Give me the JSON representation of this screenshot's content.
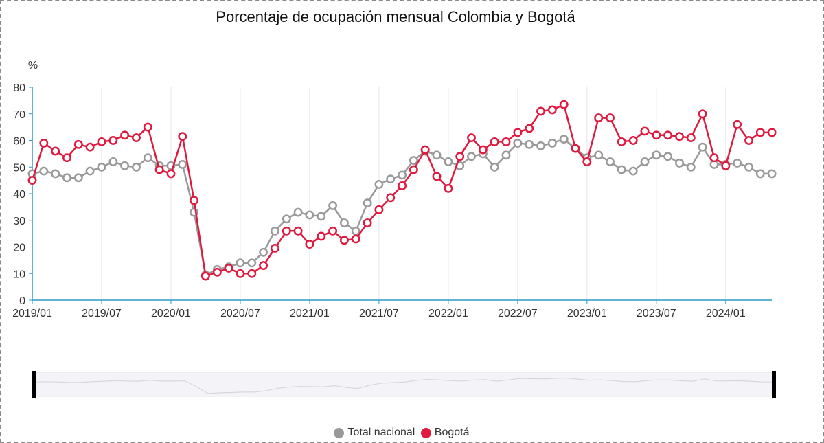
{
  "chart_data": {
    "type": "line",
    "title": "Porcentaje de ocupación mensual Colombia y Bogotá",
    "ylabel": "%",
    "xlabel": "",
    "ylim": [
      0,
      80
    ],
    "yticks": [
      0,
      10,
      20,
      30,
      40,
      50,
      60,
      70,
      80
    ],
    "x_tick_labels": [
      "2019/01",
      "2019/07",
      "2020/01",
      "2020/07",
      "2021/01",
      "2021/07",
      "2022/01",
      "2022/07",
      "2023/01",
      "2023/07",
      "2024/01"
    ],
    "x_start": "2019/01",
    "x_end": "2024/05",
    "grid": "vertical",
    "legend_position": "bottom",
    "series": [
      {
        "name": "Total nacional",
        "color": "#999999",
        "values": [
          47.5,
          48.5,
          47.5,
          46,
          46,
          48.5,
          50,
          52,
          50.5,
          50,
          53.5,
          50.5,
          50.5,
          51,
          33,
          9.5,
          11.5,
          12.5,
          14,
          14,
          18,
          26,
          30.5,
          33,
          32,
          31.5,
          35.5,
          29,
          26,
          36.5,
          43.5,
          45.5,
          47,
          52.5,
          56,
          54.5,
          52,
          50.5,
          54,
          55,
          50,
          54.5,
          59,
          58.5,
          58,
          59,
          60.5,
          57,
          53.5,
          54.5,
          52,
          49,
          48.5,
          52,
          54.5,
          54,
          51.5,
          50,
          57.5,
          51,
          51,
          51.5,
          50,
          47.5,
          47.5
        ]
      },
      {
        "name": "Bogotá",
        "color": "#e0193f",
        "values": [
          45,
          59,
          56,
          53.5,
          58.5,
          57.5,
          59.5,
          60,
          62,
          61,
          65,
          49,
          47.5,
          61.5,
          37.5,
          9,
          10.5,
          12,
          10,
          10,
          13,
          19.5,
          26,
          26,
          21,
          24,
          26,
          22.5,
          23,
          29,
          34,
          38.5,
          43,
          49,
          56.5,
          46.5,
          42,
          54,
          61,
          56.5,
          59.5,
          59.5,
          63,
          64.5,
          71,
          71.5,
          73.5,
          57,
          52,
          68.5,
          68.5,
          59.5,
          60,
          63.5,
          62,
          62,
          61.5,
          61,
          70,
          53.5,
          50.5,
          66,
          60,
          63,
          63
        ]
      }
    ]
  }
}
